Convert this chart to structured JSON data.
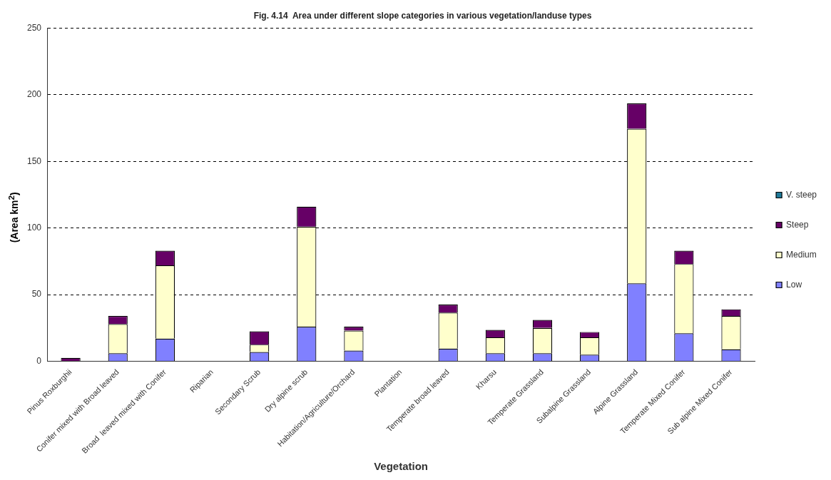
{
  "chart_data": {
    "type": "bar",
    "title": "Fig. 4.14  Area under different slope categories in various vegetation/landuse types",
    "xlabel": "Vegetation",
    "ylabel": "(Area km$^{2}$)",
    "categories": [
      "Pinus Roxburghii",
      "Conifer mixed with Broad leaved",
      "Broad  leaved mixed with Conifer",
      "Riparian",
      "Secondary Scrub",
      "Dry alpine scrub",
      "Habitation/Agriculture/Orchard",
      "Plantation",
      "Temperate broad leaved",
      "Kharsu",
      "Temperate Grassland",
      "Subalpine Grassland",
      "Alpine Grassland",
      "Temperate Mixed Conifer",
      "Sub alpine Mixed Conifer"
    ],
    "stacked": true,
    "series": [
      {
        "name": "Low",
        "color": "#8080ff",
        "values": [
          0,
          6,
          17,
          0,
          7,
          26,
          8,
          0,
          9.5,
          6,
          6,
          5,
          58.5,
          21,
          9
        ]
      },
      {
        "name": "Medium",
        "color": "#ffffcc",
        "values": [
          0,
          22,
          55,
          0,
          5.5,
          75,
          15,
          0,
          27,
          12,
          19,
          13,
          116,
          52,
          25
        ]
      },
      {
        "name": "Steep",
        "color": "#660066",
        "values": [
          2.5,
          6,
          11,
          0,
          10,
          15,
          3,
          0,
          6,
          5.5,
          6,
          4,
          19,
          10,
          5
        ]
      },
      {
        "name": "V. steep",
        "color": "#1f7a99",
        "values": [
          0,
          0,
          0,
          0,
          0,
          0,
          0,
          0,
          0,
          0,
          0,
          0,
          0,
          0,
          0
        ]
      }
    ],
    "ylim": [
      0,
      250
    ],
    "yticks": [
      0,
      50,
      100,
      150,
      200,
      250
    ],
    "grid": "y",
    "legend": "right"
  }
}
